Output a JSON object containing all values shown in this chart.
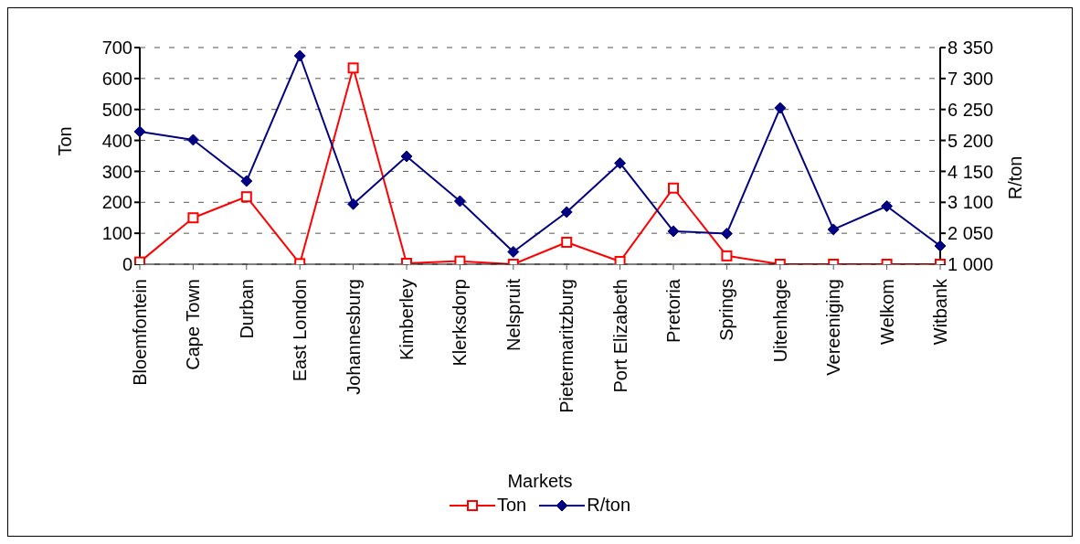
{
  "chart_data": {
    "type": "line",
    "xlabel": "Markets",
    "ylabel": "Ton",
    "y2label": "R/ton",
    "categories": [
      "Bloemfontein",
      "Cape Town",
      "Durban",
      "East London",
      "Johannesburg",
      "Kimberley",
      "Klerksdorp",
      "Nelspruit",
      "Pietermaritzburg",
      "Port Elizabeth",
      "Pretoria",
      "Springs",
      "Uitenhage",
      "Vereeniging",
      "Welkom",
      "Witbank"
    ],
    "series": [
      {
        "name": "Ton",
        "color": "#ff0000",
        "marker": "square",
        "values": [
          7,
          150,
          218,
          2,
          634,
          3,
          10,
          0,
          71,
          9,
          246,
          27,
          0,
          0,
          0,
          0
        ]
      },
      {
        "name": "R/ton",
        "color": "#000080",
        "marker": "diamond",
        "axis": "y2",
        "values": [
          5500,
          5220,
          3820,
          8070,
          3040,
          4660,
          3140,
          1420,
          2770,
          4430,
          2120,
          2040,
          6300,
          2180,
          2970,
          1620
        ]
      }
    ],
    "ylim": [
      0,
      700
    ],
    "yticks": [
      0,
      100,
      200,
      300,
      400,
      500,
      600,
      700
    ],
    "y2lim": [
      1000,
      8350
    ],
    "y2ticks": [
      {
        "value": 1000,
        "label": "1 000"
      },
      {
        "value": 2050,
        "label": "2 050"
      },
      {
        "value": 3100,
        "label": "3 100"
      },
      {
        "value": 4150,
        "label": "4 150"
      },
      {
        "value": 5200,
        "label": "5 200"
      },
      {
        "value": 6250,
        "label": "6 250"
      },
      {
        "value": 7300,
        "label": "7 300"
      },
      {
        "value": 8350,
        "label": "8 350"
      }
    ],
    "grid": "y",
    "legend": "bottom"
  }
}
